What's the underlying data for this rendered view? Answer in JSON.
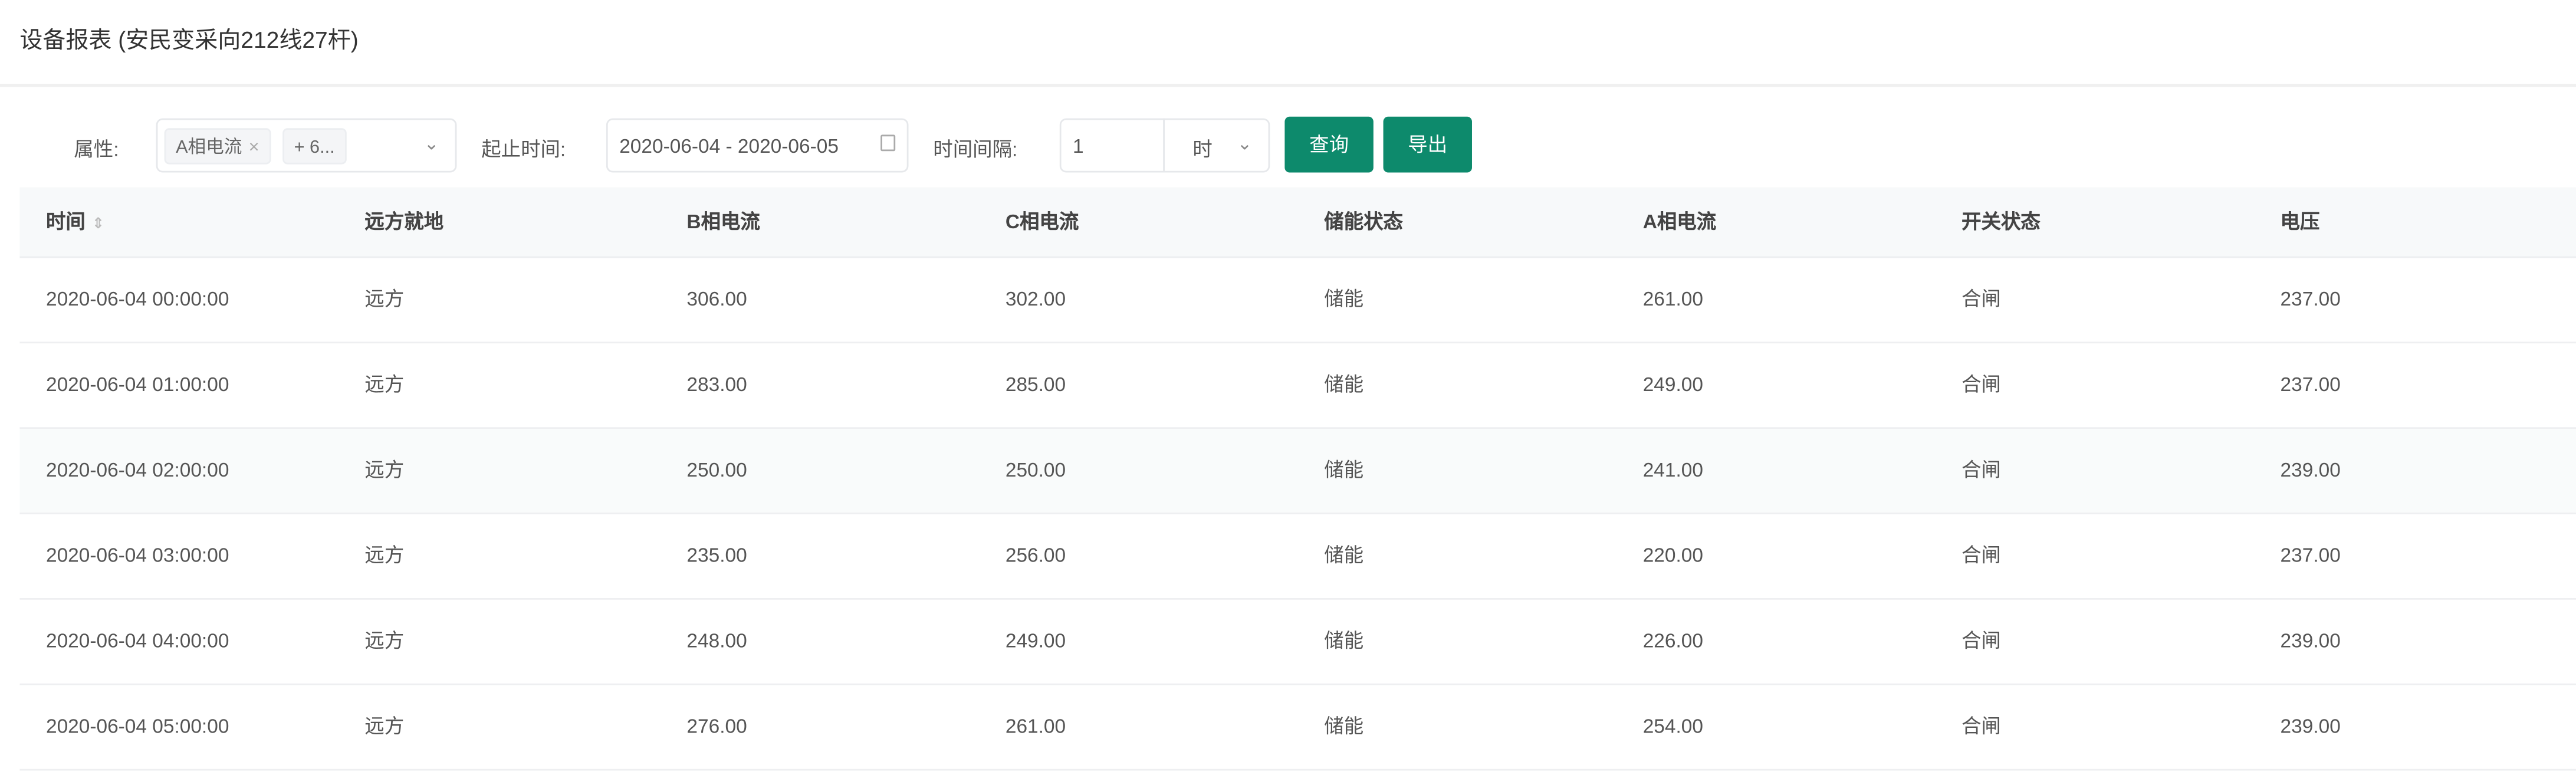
{
  "header": {
    "title": "设备报表 (安民变采向212线27杆)"
  },
  "filters": {
    "attr_label": "属性:",
    "attr_tags": [
      "A相电流",
      "+ 6..."
    ],
    "tag_close": "×",
    "time_range_label": "起止时间:",
    "time_range_value": "2020-06-04 - 2020-06-05",
    "interval_label": "时间间隔:",
    "interval_value": "1",
    "interval_unit": "时",
    "query_label": "查询",
    "export_label": "导出"
  },
  "colors": {
    "primary": "#0d8a6c"
  },
  "table": {
    "columns": [
      "时间",
      "远方就地",
      "B相电流",
      "C相电流",
      "储能状态",
      "A相电流",
      "开关状态",
      "电压"
    ],
    "sort_icon": "⇕",
    "rows": [
      [
        "2020-06-04 00:00:00",
        "远方",
        "306.00",
        "302.00",
        "储能",
        "261.00",
        "合闸",
        "237.00"
      ],
      [
        "2020-06-04 01:00:00",
        "远方",
        "283.00",
        "285.00",
        "储能",
        "249.00",
        "合闸",
        "237.00"
      ],
      [
        "2020-06-04 02:00:00",
        "远方",
        "250.00",
        "250.00",
        "储能",
        "241.00",
        "合闸",
        "239.00"
      ],
      [
        "2020-06-04 03:00:00",
        "远方",
        "235.00",
        "256.00",
        "储能",
        "220.00",
        "合闸",
        "237.00"
      ],
      [
        "2020-06-04 04:00:00",
        "远方",
        "248.00",
        "249.00",
        "储能",
        "226.00",
        "合闸",
        "239.00"
      ],
      [
        "2020-06-04 05:00:00",
        "远方",
        "276.00",
        "261.00",
        "储能",
        "254.00",
        "合闸",
        "239.00"
      ]
    ]
  }
}
